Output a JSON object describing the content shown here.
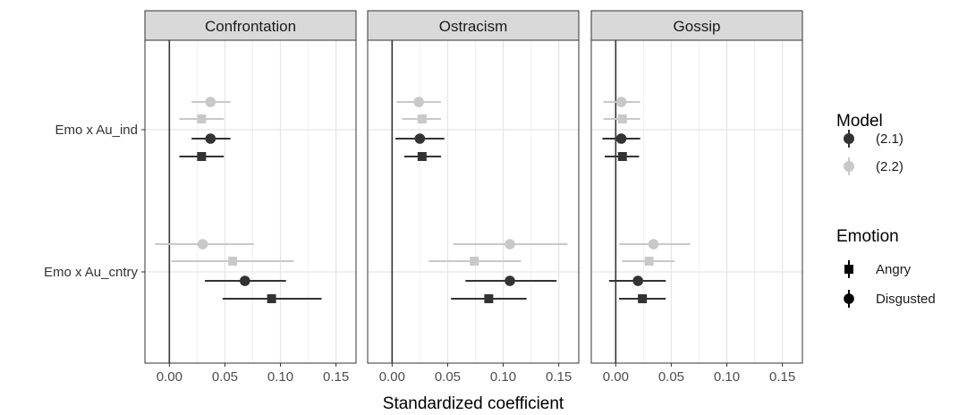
{
  "chart_data": {
    "type": "forest",
    "xlabel": "Standardized coefficient",
    "xlim": [
      -0.022,
      0.168
    ],
    "x_ticks": [
      0.0,
      0.05,
      0.1,
      0.15
    ],
    "x_tick_labels": [
      "0.00",
      "0.05",
      "0.10",
      "0.15"
    ],
    "reference_line": 0,
    "grid": true,
    "rows": [
      "Emo x Au_ind",
      "Emo x Au_cntry"
    ],
    "panels": [
      {
        "title": "Confrontation",
        "points": [
          {
            "row": "Emo x Au_ind",
            "model": "(2.2)",
            "emotion": "Disgusted",
            "estimate": 0.037,
            "low": 0.02,
            "high": 0.055
          },
          {
            "row": "Emo x Au_ind",
            "model": "(2.2)",
            "emotion": "Angry",
            "estimate": 0.029,
            "low": 0.009,
            "high": 0.049
          },
          {
            "row": "Emo x Au_ind",
            "model": "(2.1)",
            "emotion": "Disgusted",
            "estimate": 0.037,
            "low": 0.02,
            "high": 0.055
          },
          {
            "row": "Emo x Au_ind",
            "model": "(2.1)",
            "emotion": "Angry",
            "estimate": 0.029,
            "low": 0.009,
            "high": 0.049
          },
          {
            "row": "Emo x Au_cntry",
            "model": "(2.2)",
            "emotion": "Disgusted",
            "estimate": 0.03,
            "low": -0.013,
            "high": 0.076
          },
          {
            "row": "Emo x Au_cntry",
            "model": "(2.2)",
            "emotion": "Angry",
            "estimate": 0.057,
            "low": 0.002,
            "high": 0.112
          },
          {
            "row": "Emo x Au_cntry",
            "model": "(2.1)",
            "emotion": "Disgusted",
            "estimate": 0.068,
            "low": 0.032,
            "high": 0.105
          },
          {
            "row": "Emo x Au_cntry",
            "model": "(2.1)",
            "emotion": "Angry",
            "estimate": 0.092,
            "low": 0.048,
            "high": 0.137
          }
        ]
      },
      {
        "title": "Ostracism",
        "points": [
          {
            "row": "Emo x Au_ind",
            "model": "(2.2)",
            "emotion": "Disgusted",
            "estimate": 0.024,
            "low": 0.004,
            "high": 0.044
          },
          {
            "row": "Emo x Au_ind",
            "model": "(2.2)",
            "emotion": "Angry",
            "estimate": 0.027,
            "low": 0.009,
            "high": 0.044
          },
          {
            "row": "Emo x Au_ind",
            "model": "(2.1)",
            "emotion": "Disgusted",
            "estimate": 0.025,
            "low": 0.003,
            "high": 0.047
          },
          {
            "row": "Emo x Au_ind",
            "model": "(2.1)",
            "emotion": "Angry",
            "estimate": 0.027,
            "low": 0.011,
            "high": 0.044
          },
          {
            "row": "Emo x Au_cntry",
            "model": "(2.2)",
            "emotion": "Disgusted",
            "estimate": 0.106,
            "low": 0.055,
            "high": 0.158
          },
          {
            "row": "Emo x Au_cntry",
            "model": "(2.2)",
            "emotion": "Angry",
            "estimate": 0.074,
            "low": 0.033,
            "high": 0.116
          },
          {
            "row": "Emo x Au_cntry",
            "model": "(2.1)",
            "emotion": "Disgusted",
            "estimate": 0.106,
            "low": 0.066,
            "high": 0.148
          },
          {
            "row": "Emo x Au_cntry",
            "model": "(2.1)",
            "emotion": "Angry",
            "estimate": 0.087,
            "low": 0.053,
            "high": 0.121
          }
        ]
      },
      {
        "title": "Gossip",
        "points": [
          {
            "row": "Emo x Au_ind",
            "model": "(2.2)",
            "emotion": "Disgusted",
            "estimate": 0.005,
            "low": -0.011,
            "high": 0.022
          },
          {
            "row": "Emo x Au_ind",
            "model": "(2.2)",
            "emotion": "Angry",
            "estimate": 0.006,
            "low": -0.011,
            "high": 0.022
          },
          {
            "row": "Emo x Au_ind",
            "model": "(2.1)",
            "emotion": "Disgusted",
            "estimate": 0.005,
            "low": -0.012,
            "high": 0.022
          },
          {
            "row": "Emo x Au_ind",
            "model": "(2.1)",
            "emotion": "Angry",
            "estimate": 0.006,
            "low": -0.01,
            "high": 0.021
          },
          {
            "row": "Emo x Au_cntry",
            "model": "(2.2)",
            "emotion": "Disgusted",
            "estimate": 0.034,
            "low": 0.003,
            "high": 0.067
          },
          {
            "row": "Emo x Au_cntry",
            "model": "(2.2)",
            "emotion": "Angry",
            "estimate": 0.03,
            "low": 0.006,
            "high": 0.053
          },
          {
            "row": "Emo x Au_cntry",
            "model": "(2.1)",
            "emotion": "Disgusted",
            "estimate": 0.02,
            "low": -0.006,
            "high": 0.045
          },
          {
            "row": "Emo x Au_cntry",
            "model": "(2.1)",
            "emotion": "Angry",
            "estimate": 0.024,
            "low": 0.003,
            "high": 0.045
          }
        ]
      }
    ],
    "legend": {
      "placement": "right",
      "model_title": "Model",
      "model_entries": [
        {
          "label": "(2.1)",
          "color": "#333333"
        },
        {
          "label": "(2.2)",
          "color": "#c8c8c8"
        }
      ],
      "emotion_title": "Emotion",
      "emotion_entries": [
        {
          "label": "Angry",
          "shape": "square"
        },
        {
          "label": "Disgusted",
          "shape": "circle"
        }
      ]
    }
  }
}
